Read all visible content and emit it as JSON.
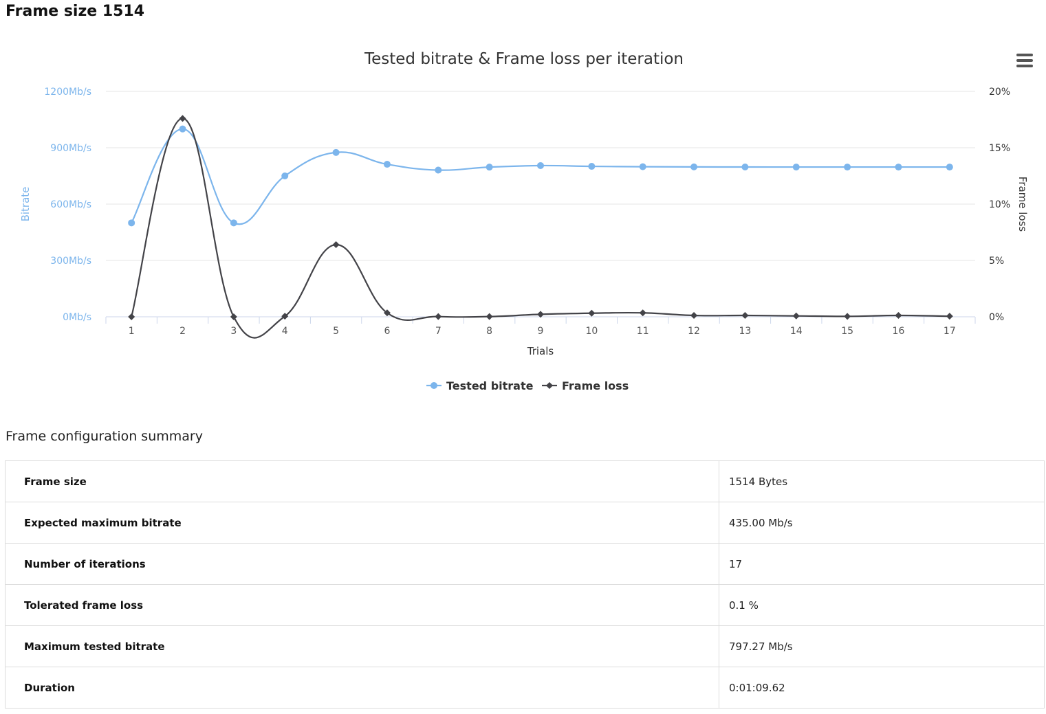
{
  "page": {
    "title": "Frame size 1514",
    "summary_title": "Frame configuration summary"
  },
  "chart_data": {
    "type": "line",
    "title": "Tested bitrate & Frame loss per iteration",
    "xlabel": "Trials",
    "ylabel_left": "Bitrate",
    "ylabel_right": "Frame loss",
    "categories": [
      "1",
      "2",
      "3",
      "4",
      "5",
      "6",
      "7",
      "8",
      "9",
      "10",
      "11",
      "12",
      "13",
      "14",
      "15",
      "16",
      "17"
    ],
    "left_axis": {
      "ticks": [
        "0Mb/s",
        "300Mb/s",
        "600Mb/s",
        "900Mb/s",
        "1200Mb/s"
      ],
      "ylim": [
        0,
        1200
      ],
      "unit": "Mb/s"
    },
    "right_axis": {
      "ticks": [
        "0%",
        "5%",
        "10%",
        "15%",
        "20%"
      ],
      "ylim": [
        0,
        20
      ],
      "unit": "%"
    },
    "series": [
      {
        "name": "Tested bitrate",
        "axis": "left",
        "color": "#7cb5ec",
        "marker": "circle",
        "values": [
          500,
          1000,
          500,
          750,
          875,
          812,
          781,
          797,
          805,
          801,
          799,
          798,
          797.5,
          797.3,
          797.27,
          797.27,
          797.27
        ]
      },
      {
        "name": "Frame loss",
        "axis": "right",
        "color": "#434348",
        "marker": "diamond",
        "values": [
          0,
          17.6,
          0,
          0.05,
          6.4,
          0.35,
          0.02,
          0.02,
          0.22,
          0.32,
          0.35,
          0.12,
          0.12,
          0.08,
          0.04,
          0.12,
          0.05
        ]
      }
    ],
    "grid": true,
    "legend_position": "bottom-center"
  },
  "summary_rows": [
    {
      "key": "Frame size",
      "value": "1514 Bytes"
    },
    {
      "key": "Expected maximum bitrate",
      "value": "435.00 Mb/s"
    },
    {
      "key": "Number of iterations",
      "value": "17"
    },
    {
      "key": "Tolerated frame loss",
      "value": "0.1 %"
    },
    {
      "key": "Maximum tested bitrate",
      "value": "797.27 Mb/s"
    },
    {
      "key": "Duration",
      "value": "0:01:09.62"
    }
  ]
}
